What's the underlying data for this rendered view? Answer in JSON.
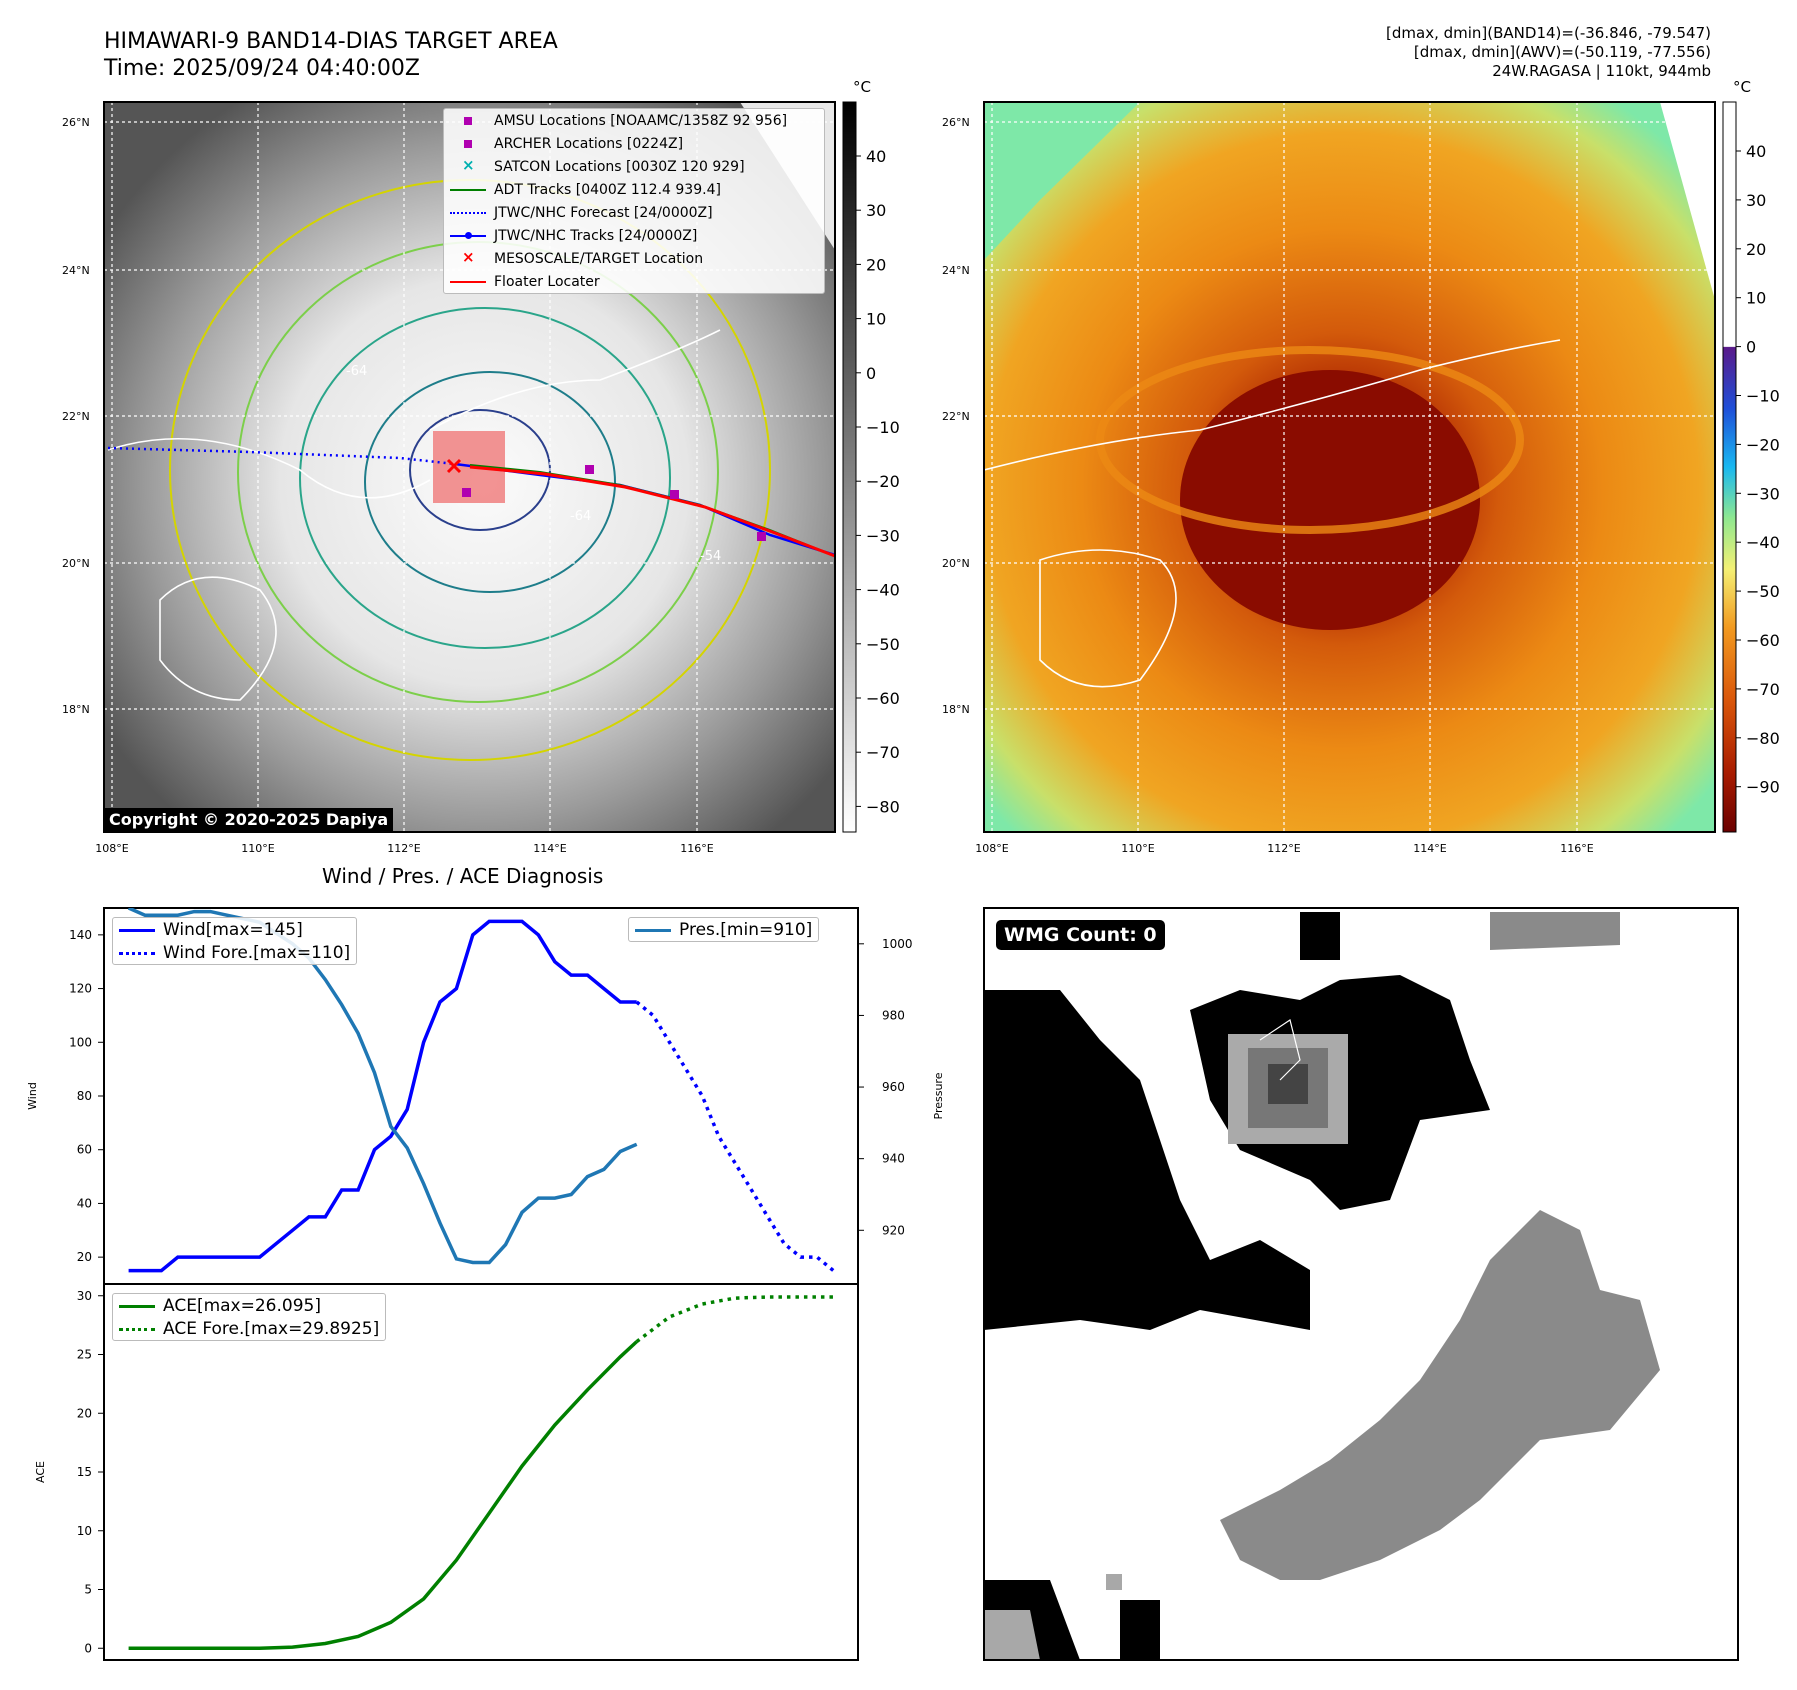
{
  "header": {
    "title_line1": "HIMAWARI-9 BAND14-DIAS TARGET AREA",
    "title_line2": "Time: 2025/09/24 04:40:00Z",
    "right_line1": "[dmax, dmin](BAND14)=(-36.846, -79.547)",
    "right_line2": "[dmax, dmin](AWV)=(-50.119, -77.556)",
    "right_line3": "24W.RAGASA | 110kt, 944mb"
  },
  "map_axes": {
    "lat_labels": [
      "26°N",
      "24°N",
      "22°N",
      "20°N",
      "18°N"
    ],
    "lon_labels": [
      "108°E",
      "110°E",
      "112°E",
      "114°E",
      "116°E"
    ]
  },
  "colorbar_left": {
    "unit": "°C",
    "ticks": [
      "40",
      "30",
      "20",
      "10",
      "0",
      "−10",
      "−20",
      "−30",
      "−40",
      "−50",
      "−60",
      "−70",
      "−80"
    ]
  },
  "colorbar_right": {
    "unit": "°C",
    "ticks": [
      "40",
      "30",
      "20",
      "10",
      "0",
      "−10",
      "−20",
      "−30",
      "−40",
      "−50",
      "−60",
      "−70",
      "−80",
      "−90"
    ]
  },
  "map_legend": [
    {
      "label": "AMSU Locations [NOAAMC/1358Z 92 956]",
      "symbol": "square",
      "color": "#b000b0"
    },
    {
      "label": "ARCHER Locations [0224Z]",
      "symbol": "square",
      "color": "#b000b0"
    },
    {
      "label": "SATCON Locations [0030Z 120 929]",
      "symbol": "x",
      "color": "#00b0b0"
    },
    {
      "label": "ADT Tracks [0400Z 112.4 939.4]",
      "symbol": "line",
      "color": "#007f00"
    },
    {
      "label": "JTWC/NHC Forecast [24/0000Z]",
      "symbol": "dotted",
      "color": "#0000ff"
    },
    {
      "label": "JTWC/NHC Tracks [24/0000Z]",
      "symbol": "line-dot",
      "color": "#0000ff"
    },
    {
      "label": "MESOSCALE/TARGET Location",
      "symbol": "x",
      "color": "#ff0000"
    },
    {
      "label": "Floater Locater",
      "symbol": "line",
      "color": "#ff0000"
    }
  ],
  "contour_labels": [
    "-64",
    "-54"
  ],
  "copyright": "Copyright © 2020-2025 Dapiya",
  "diagnosis_title": "Wind / Pres. / ACE Diagnosis",
  "wmg_count": "WMG Count: 0",
  "chart_data": [
    {
      "type": "line",
      "title": "",
      "xlabel": "",
      "ylabel": "Wind",
      "y2label": "Pressure",
      "ylim": [
        10,
        150
      ],
      "y2lim": [
        905,
        1010
      ],
      "yticks": [
        20,
        40,
        60,
        80,
        100,
        120,
        140
      ],
      "y2ticks": [
        920,
        940,
        960,
        980,
        1000
      ],
      "x": [
        0,
        1,
        2,
        3,
        4,
        5,
        6,
        7,
        8,
        9,
        10,
        11,
        12,
        13,
        14,
        15,
        16,
        17,
        18,
        19,
        20,
        21,
        22,
        23,
        24,
        25,
        26,
        27,
        28,
        29,
        30,
        31,
        32,
        33,
        34,
        35,
        36,
        37,
        38,
        39,
        40,
        41,
        42,
        43
      ],
      "series": [
        {
          "name": "Wind[max=145]",
          "axis": "left",
          "style": "solid",
          "color": "#0000ff",
          "x": [
            0,
            1,
            2,
            3,
            4,
            5,
            6,
            7,
            8,
            9,
            10,
            11,
            12,
            13,
            14,
            15,
            16,
            17,
            18,
            19,
            20,
            21,
            22,
            23,
            24,
            25,
            26,
            27,
            28,
            29,
            30,
            31
          ],
          "values": [
            15,
            15,
            15,
            20,
            20,
            20,
            20,
            20,
            20,
            25,
            30,
            35,
            35,
            45,
            45,
            60,
            65,
            75,
            100,
            115,
            120,
            140,
            145,
            145,
            145,
            140,
            130,
            125,
            125,
            120,
            115,
            115
          ]
        },
        {
          "name": "Wind Fore.[max=110]",
          "axis": "left",
          "style": "dotted",
          "color": "#0000ff",
          "x": [
            31,
            32,
            33,
            34,
            35,
            36,
            37,
            38,
            39,
            40,
            41,
            42,
            43
          ],
          "values": [
            115,
            110,
            100,
            90,
            80,
            65,
            55,
            45,
            35,
            25,
            20,
            20,
            15
          ]
        },
        {
          "name": "Pres.[min=910]",
          "axis": "right",
          "style": "solid",
          "color": "#1f77b4",
          "x": [
            0,
            1,
            2,
            3,
            4,
            5,
            6,
            7,
            8,
            9,
            10,
            11,
            12,
            13,
            14,
            15,
            16,
            17,
            18,
            19,
            20,
            21,
            22,
            23,
            24,
            25,
            26,
            27,
            28,
            29,
            30,
            31
          ],
          "values": [
            1010,
            1008,
            1008,
            1008,
            1009,
            1009,
            1008,
            1007,
            1006,
            1003,
            1000,
            996,
            990,
            983,
            975,
            964,
            949,
            943,
            933,
            922,
            912,
            911,
            911,
            916,
            925,
            929,
            929,
            930,
            935,
            937,
            942,
            944
          ]
        }
      ]
    },
    {
      "type": "line",
      "title": "",
      "xlabel": "",
      "ylabel": "ACE",
      "ylim": [
        -1,
        31
      ],
      "yticks": [
        0,
        5,
        10,
        15,
        20,
        25,
        30
      ],
      "series": [
        {
          "name": "ACE[max=26.095]",
          "style": "solid",
          "color": "#008000",
          "x": [
            0,
            2,
            4,
            6,
            8,
            10,
            12,
            14,
            16,
            18,
            20,
            22,
            24,
            26,
            28,
            30,
            31
          ],
          "values": [
            0,
            0,
            0,
            0,
            0,
            0.1,
            0.4,
            1.0,
            2.2,
            4.2,
            7.5,
            11.5,
            15.5,
            19,
            22,
            24.8,
            26.095
          ]
        },
        {
          "name": "ACE Fore.[max=29.8925]",
          "style": "dotted",
          "color": "#008000",
          "x": [
            31,
            33,
            35,
            37,
            39,
            41,
            43
          ],
          "values": [
            26.095,
            28.2,
            29.3,
            29.8,
            29.89,
            29.89,
            29.89
          ]
        }
      ]
    }
  ],
  "colors": {
    "wind": "#0000ff",
    "pressure": "#1f77b4",
    "ace": "#008000",
    "target_box": "#f08080"
  }
}
